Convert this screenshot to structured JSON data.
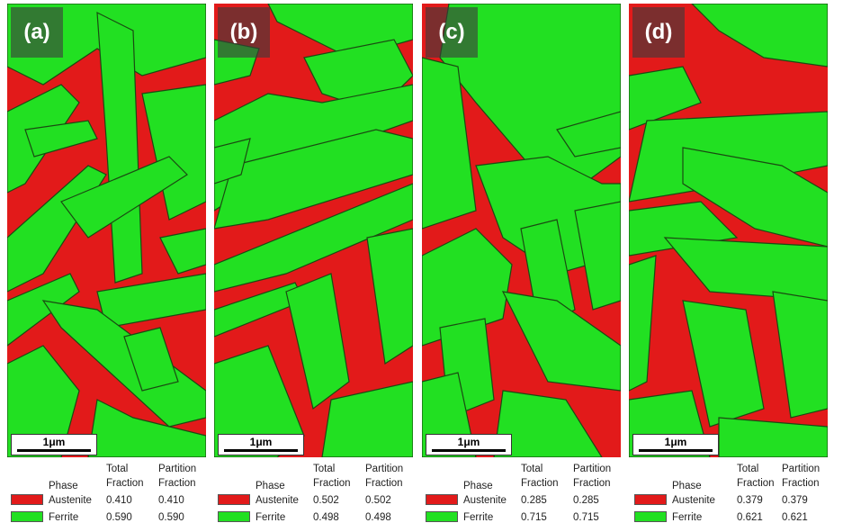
{
  "colors": {
    "austenite": "#e21a1a",
    "ferrite": "#22e022",
    "boundary": "#1a4a12"
  },
  "legend_headers": {
    "phase": "Phase",
    "total_l1": "Total",
    "total_l2": "Fraction",
    "partition_l1": "Partition",
    "partition_l2": "Fraction"
  },
  "panels": [
    {
      "label": "(a)",
      "scale": "1μm",
      "rows": [
        {
          "phase": "Austenite",
          "total": "0.410",
          "partition": "0.410"
        },
        {
          "phase": "Ferrite",
          "total": "0.590",
          "partition": "0.590"
        }
      ]
    },
    {
      "label": "(b)",
      "scale": "1μm",
      "rows": [
        {
          "phase": "Austenite",
          "total": "0.502",
          "partition": "0.502"
        },
        {
          "phase": "Ferrite",
          "total": "0.498",
          "partition": "0.498"
        }
      ]
    },
    {
      "label": "(c)",
      "scale": "1μm",
      "rows": [
        {
          "phase": "Austenite",
          "total": "0.285",
          "partition": "0.285"
        },
        {
          "phase": "Ferrite",
          "total": "0.715",
          "partition": "0.715"
        }
      ]
    },
    {
      "label": "(d)",
      "scale": "1μm",
      "rows": [
        {
          "phase": "Austenite",
          "total": "0.379",
          "partition": "0.379"
        },
        {
          "phase": "Ferrite",
          "total": "0.621",
          "partition": "0.621"
        }
      ]
    }
  ]
}
